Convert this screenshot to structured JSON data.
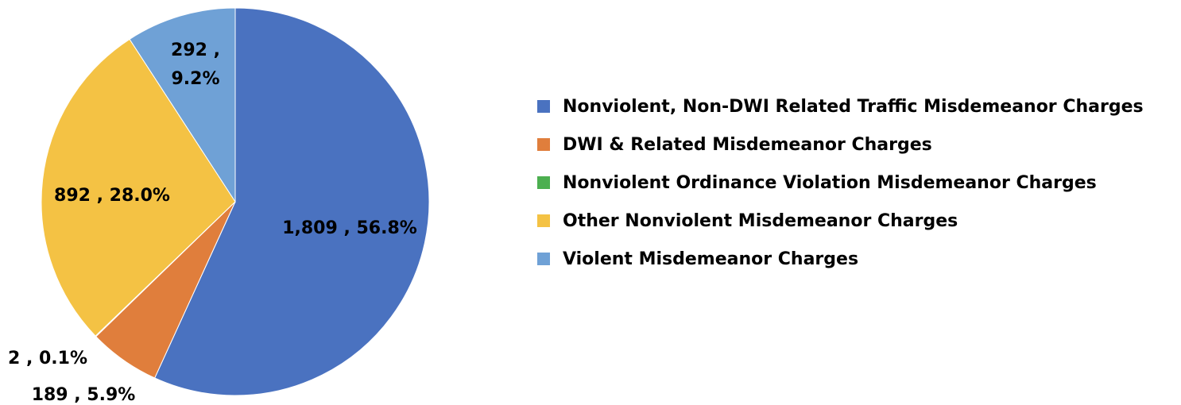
{
  "chart_data": {
    "type": "pie",
    "title": "",
    "start_angle_deg": 0,
    "direction": "clockwise",
    "legend_position": "right",
    "slices": [
      {
        "name": "Nonviolent, Non-DWI Related Traffic Misdemeanor Charges",
        "value": 1809,
        "percent": 56.8,
        "label": "1,809 , 56.8%",
        "color": "#4A72C0"
      },
      {
        "name": "DWI & Related Misdemeanor Charges",
        "value": 189,
        "percent": 5.9,
        "label": "189 , 5.9%",
        "color": "#E07E3C"
      },
      {
        "name": "Nonviolent Ordinance Violation Misdemeanor Charges",
        "value": 2,
        "percent": 0.1,
        "label": "2 , 0.1%",
        "color": "#4CAF50"
      },
      {
        "name": "Other Nonviolent Misdemeanor Charges",
        "value": 892,
        "percent": 28.0,
        "label": "892 , 28.0%",
        "color": "#F4C244"
      },
      {
        "name": "Violent Misdemeanor Charges",
        "value": 292,
        "percent": 9.2,
        "label_lines": [
          "292 ,",
          "9.2%"
        ],
        "color": "#6FA1D6"
      }
    ]
  }
}
